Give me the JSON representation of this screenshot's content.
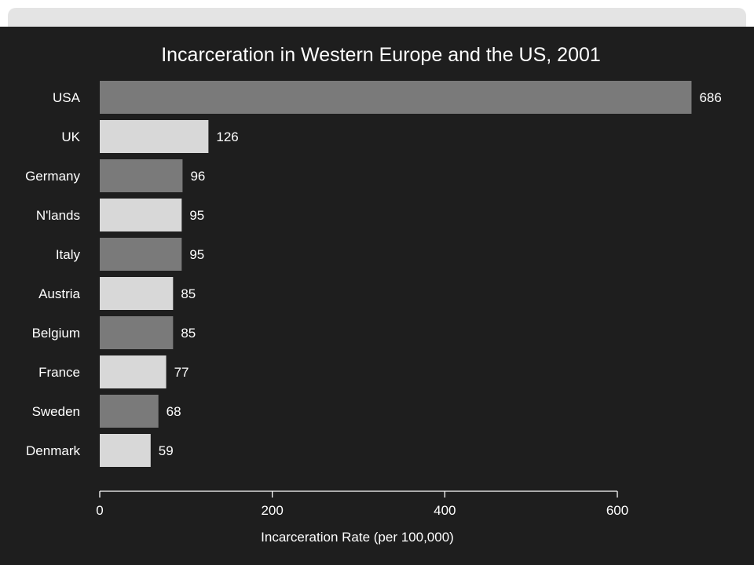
{
  "chart_data": {
    "type": "bar",
    "orientation": "horizontal",
    "title": "Incarceration in Western Europe and the US, 2001",
    "xlabel": "Incarceration Rate (per 100,000)",
    "ylabel": "",
    "xlim": [
      0,
      600
    ],
    "xticks": [
      0,
      200,
      400,
      600
    ],
    "grid": false,
    "categories": [
      "USA",
      "UK",
      "Germany",
      "N'lands",
      "Italy",
      "Austria",
      "Belgium",
      "France",
      "Sweden",
      "Denmark"
    ],
    "values": [
      686,
      126,
      96,
      95,
      95,
      85,
      85,
      77,
      68,
      59
    ],
    "bar_colors": [
      "#7a7a7a",
      "#d8d8d8"
    ]
  }
}
